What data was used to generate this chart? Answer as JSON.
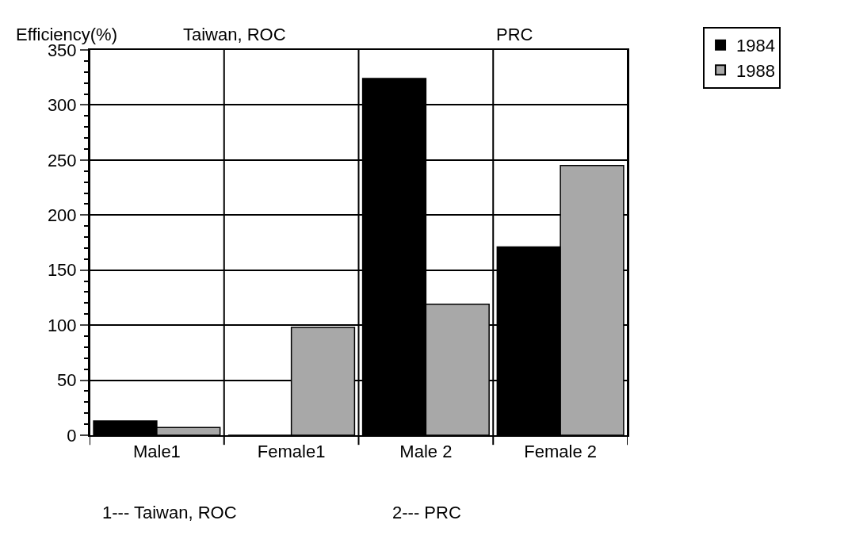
{
  "chart_data": {
    "type": "bar",
    "ylabel": "Efficiency(%)",
    "categories": [
      "Male1",
      "Female1",
      "Male 2",
      "Female 2"
    ],
    "series": [
      {
        "name": "1984",
        "color": "#000000",
        "values": [
          13,
          0,
          324,
          171
        ]
      },
      {
        "name": "1988",
        "color": "#a8a8a8",
        "values": [
          7,
          98,
          119,
          245
        ]
      }
    ],
    "ylim": [
      0,
      350
    ],
    "yticks": [
      0,
      50,
      100,
      150,
      200,
      250,
      300,
      350
    ],
    "grid": true,
    "legend": "top right",
    "annotations": [
      "Taiwan, ROC",
      "PRC",
      "1--- Taiwan, ROC",
      "2--- PRC"
    ]
  }
}
